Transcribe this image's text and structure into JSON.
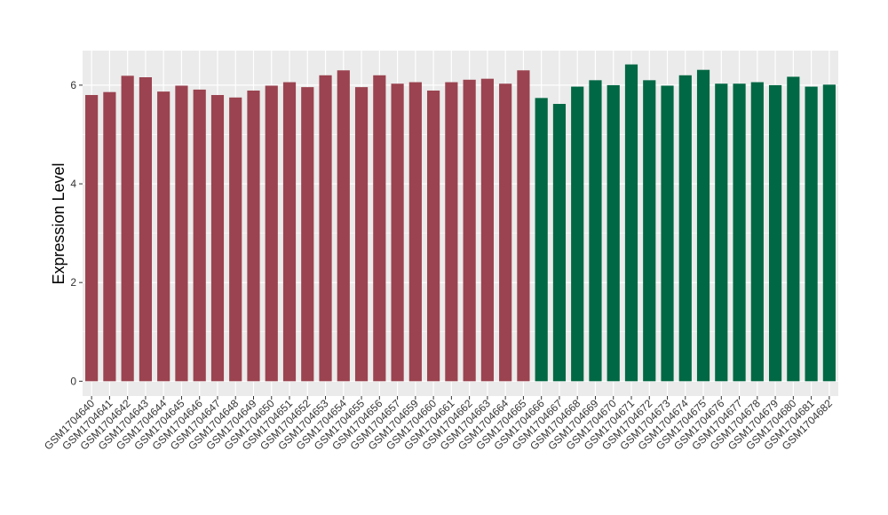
{
  "chart_data": {
    "type": "bar",
    "title": "",
    "xlabel": "",
    "ylabel": "Expression Level",
    "ylim": [
      -0.3,
      6.7
    ],
    "yticks": [
      0,
      2,
      4,
      6
    ],
    "grid": true,
    "legend": "none",
    "categories": [
      "GSM1704640",
      "GSM1704641",
      "GSM1704642",
      "GSM1704643",
      "GSM1704644",
      "GSM1704645",
      "GSM1704646",
      "GSM1704647",
      "GSM1704648",
      "GSM1704649",
      "GSM1704650",
      "GSM1704651",
      "GSM1704652",
      "GSM1704653",
      "GSM1704654",
      "GSM1704655",
      "GSM1704656",
      "GSM1704657",
      "GSM1704659",
      "GSM1704660",
      "GSM1704661",
      "GSM1704662",
      "GSM1704663",
      "GSM1704664",
      "GSM1704665",
      "GSM1704666",
      "GSM1704667",
      "GSM1704668",
      "GSM1704669",
      "GSM1704670",
      "GSM1704671",
      "GSM1704672",
      "GSM1704673",
      "GSM1704674",
      "GSM1704675",
      "GSM1704676",
      "GSM1704677",
      "GSM1704678",
      "GSM1704679",
      "GSM1704680",
      "GSM1704681",
      "GSM1704682"
    ],
    "values": [
      5.8,
      5.86,
      6.19,
      6.16,
      5.87,
      5.99,
      5.91,
      5.8,
      5.75,
      5.89,
      5.99,
      6.06,
      5.96,
      6.2,
      6.3,
      5.96,
      6.2,
      6.03,
      6.06,
      5.89,
      6.06,
      6.11,
      6.13,
      6.03,
      6.3,
      5.74,
      5.62,
      5.97,
      6.1,
      6.0,
      6.42,
      6.1,
      5.99,
      6.2,
      6.31,
      6.03,
      6.03,
      6.06,
      6.0,
      6.17,
      5.97,
      6.01
    ],
    "group_sizes": [
      25,
      17
    ],
    "colors": {
      "group1": "#9b4350",
      "group2": "#006844",
      "panel": "#ebebeb",
      "grid": "#ffffff"
    }
  }
}
